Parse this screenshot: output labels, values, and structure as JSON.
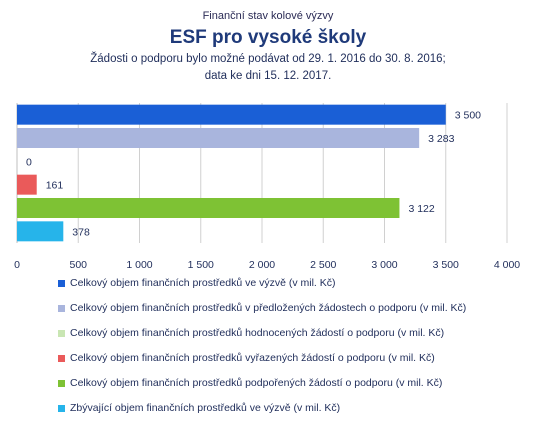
{
  "header": {
    "supertitle": "Finanční stav kolové výzvy",
    "title": "ESF pro vysoké školy",
    "subtitle_line1": "Žádosti o podporu bylo možné  podávat od 29. 1. 2016 do 30. 8. 2016;",
    "subtitle_line2": "data ke dni 15. 12. 2017."
  },
  "chart_data": {
    "type": "bar",
    "orientation": "horizontal",
    "title": "ESF pro vysoké školy",
    "xlim": [
      0,
      4000
    ],
    "xticks": [
      0,
      500,
      1000,
      1500,
      2000,
      2500,
      3000,
      3500,
      4000
    ],
    "xtick_labels": [
      "0",
      "500",
      "1 000",
      "1 500",
      "2 000",
      "2 500",
      "3 000",
      "3 500",
      "4 000"
    ],
    "grid": "vertical",
    "legend_position": "bottom",
    "series": [
      {
        "name": "Celkový objem finančních prostředků ve výzvě (v mil. Kč)",
        "value": 3500,
        "label": "3 500",
        "color": "#1a5fd6"
      },
      {
        "name": "Celkový objem finančních prostředků v předložených žádostech o podporu (v mil. Kč)",
        "value": 3283,
        "label": "3 283",
        "color": "#a9b5dd"
      },
      {
        "name": "Celkový objem finančních prostředků hodnocených žádostí o podporu (v mil. Kč)",
        "value": 0,
        "label": "0",
        "color": "#c9e6b3"
      },
      {
        "name": "Celkový objem finančních prostředků vyřazených žádostí o podporu (v mil. Kč)",
        "value": 161,
        "label": "161",
        "color": "#ea5a5a"
      },
      {
        "name": "Celkový objem finančních prostředků podpořených žádostí o podporu (v mil. Kč)",
        "value": 3122,
        "label": "3 122",
        "color": "#7ec234"
      },
      {
        "name": "Zbývající objem finančních prostředků ve výzvě (v mil. Kč)",
        "value": 378,
        "label": "378",
        "color": "#26b4ea"
      }
    ]
  }
}
